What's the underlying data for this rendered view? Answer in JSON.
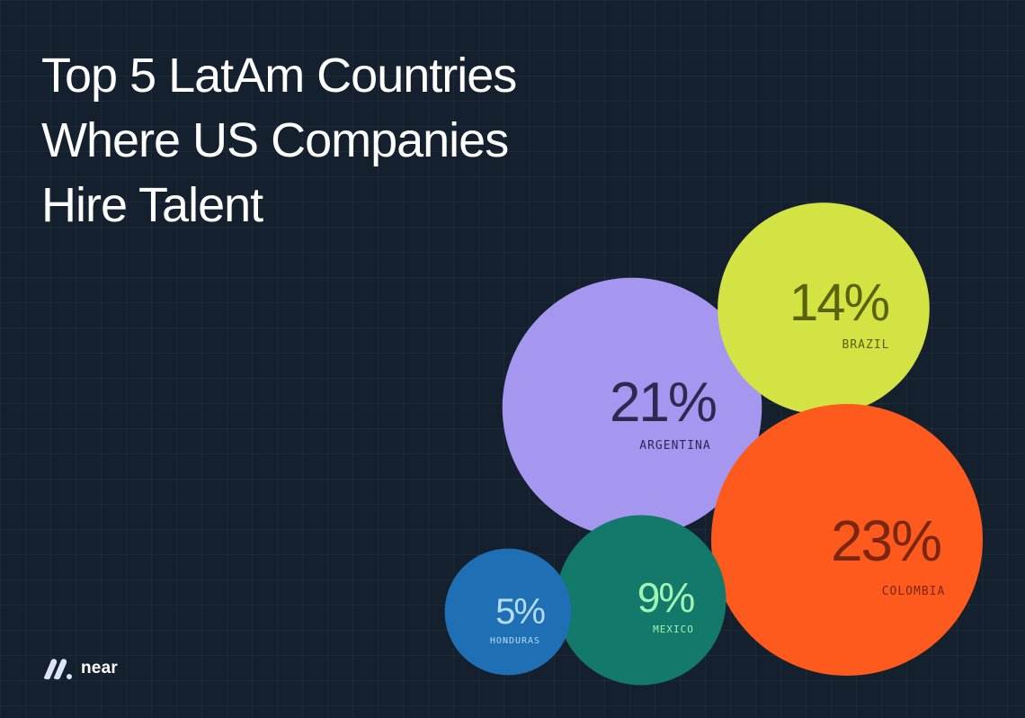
{
  "chart_data": {
    "type": "bubble",
    "title_lines": [
      "Top 5 LatAm Countries",
      "Where US Companies",
      "Hire Talent"
    ],
    "unit": "%",
    "series": [
      {
        "name": "COLOMBIA",
        "value": 23,
        "label": "23%",
        "color": "#fe5a1d",
        "text_color": "#7a2610"
      },
      {
        "name": "ARGENTINA",
        "value": 21,
        "label": "21%",
        "color": "#a597f0",
        "text_color": "#2f2850"
      },
      {
        "name": "BRAZIL",
        "value": 14,
        "label": "14%",
        "color": "#d3e344",
        "text_color": "#59620e"
      },
      {
        "name": "MEXICO",
        "value": 9,
        "label": "9%",
        "color": "#13796a",
        "text_color": "#9ef5b4"
      },
      {
        "name": "HONDURAS",
        "value": 5,
        "label": "5%",
        "color": "#1f6fb4",
        "text_color": "#b5dcf5"
      }
    ]
  },
  "brand": {
    "name": "near",
    "icon": "near-logo-icon"
  }
}
